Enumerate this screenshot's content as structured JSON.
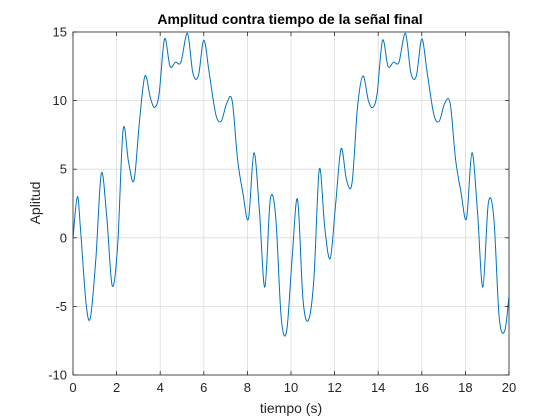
{
  "chart_data": {
    "type": "line",
    "title": "Amplitud contra tiempo de la señal final",
    "xlabel": "tiempo (s)",
    "ylabel": "Aplitud",
    "xlim": [
      0,
      20
    ],
    "ylim": [
      -10,
      15
    ],
    "xticks": [
      0,
      2,
      4,
      6,
      8,
      10,
      12,
      14,
      16,
      18,
      20
    ],
    "yticks": [
      -10,
      -5,
      0,
      5,
      10,
      15
    ],
    "grid": true,
    "line_color": "#0072BD",
    "series": [
      {
        "name": "",
        "x": [
          0,
          0.2,
          0.35,
          0.6,
          0.8,
          1.05,
          1.3,
          1.55,
          1.8,
          2.05,
          2.3,
          2.55,
          2.8,
          3.05,
          3.3,
          3.55,
          3.75,
          3.95,
          4.2,
          4.45,
          4.7,
          4.95,
          5.25,
          5.5,
          5.75,
          6.0,
          6.25,
          6.55,
          6.8,
          7.05,
          7.3,
          7.55,
          7.8,
          8.05,
          8.3,
          8.55,
          8.8,
          9.05,
          9.3,
          9.55,
          9.8,
          10.05,
          10.3,
          10.55,
          10.8,
          11.05,
          11.3,
          11.55,
          11.8,
          12.05,
          12.3,
          12.55,
          12.8,
          13.05,
          13.3,
          13.55,
          13.75,
          13.95,
          14.2,
          14.45,
          14.7,
          14.95,
          15.25,
          15.5,
          15.75,
          16.0,
          16.25,
          16.55,
          16.8,
          17.05,
          17.3,
          17.55,
          17.8,
          18.05,
          18.3,
          18.55,
          18.8,
          19.05,
          19.3,
          19.55,
          19.8,
          20.0
        ],
        "values": [
          0,
          3.0,
          0.5,
          -4.8,
          -5.8,
          -1.5,
          4.7,
          1.5,
          -3.5,
          -0.5,
          7.9,
          5.5,
          4.2,
          8.5,
          11.8,
          10.2,
          9.5,
          10.5,
          14.5,
          12.5,
          12.8,
          12.8,
          14.9,
          12.0,
          11.8,
          14.4,
          12.0,
          9.0,
          8.5,
          9.8,
          10.0,
          5.7,
          3.2,
          1.4,
          6.2,
          2.0,
          -3.6,
          2.8,
          1.5,
          -5.8,
          -6.8,
          -1.5,
          2.8,
          -4.5,
          -6.0,
          -3.0,
          5.0,
          0.7,
          -1.5,
          2.5,
          6.5,
          4.2,
          4.0,
          9.5,
          11.8,
          10.0,
          9.5,
          10.5,
          14.4,
          12.5,
          12.8,
          12.8,
          14.9,
          12.0,
          11.8,
          14.5,
          12.0,
          9.0,
          8.5,
          9.8,
          9.8,
          5.7,
          3.3,
          1.4,
          6.2,
          2.0,
          -3.6,
          2.5,
          1.5,
          -5.8,
          -6.8,
          -4.3
        ]
      }
    ]
  }
}
